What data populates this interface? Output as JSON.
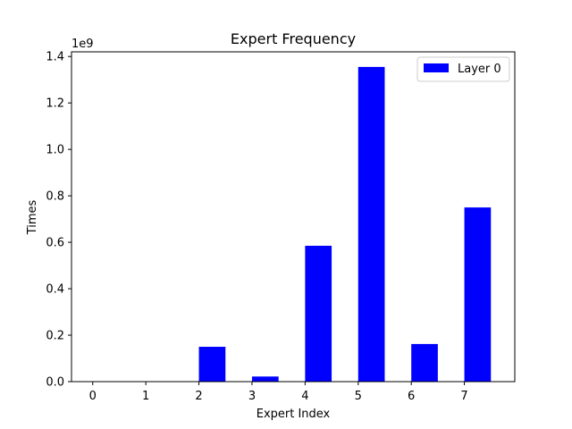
{
  "chart_data": {
    "type": "bar",
    "title": "Expert Frequency",
    "xlabel": "Expert Index",
    "ylabel": "Times",
    "scale_label": "1e9",
    "categories": [
      "0",
      "1",
      "2",
      "3",
      "4",
      "5",
      "6",
      "7"
    ],
    "x_ticks": [
      "0",
      "1",
      "2",
      "3",
      "4",
      "5",
      "6",
      "7"
    ],
    "y_ticks": [
      "0.0",
      "0.2",
      "0.4",
      "0.6",
      "0.8",
      "1.0",
      "1.2",
      "1.4"
    ],
    "ylim": [
      0,
      1.42
    ],
    "xlim": [
      -0.4,
      7.95
    ],
    "bar_offset": 0.25,
    "bar_width": 0.5,
    "series": [
      {
        "name": "Layer 0",
        "color": "#0000ff",
        "values": [
          0.0,
          0.0,
          0.15,
          0.022,
          0.585,
          1.355,
          0.162,
          0.75
        ]
      }
    ],
    "legend": {
      "position": "top-right",
      "entries": [
        "Layer 0"
      ]
    },
    "grid": false
  }
}
